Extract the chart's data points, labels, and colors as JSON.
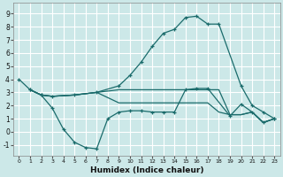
{
  "xlabel": "Humidex (Indice chaleur)",
  "xlim": [
    -0.5,
    23.5
  ],
  "ylim": [
    -1.8,
    9.8
  ],
  "xticks": [
    0,
    1,
    2,
    3,
    4,
    5,
    6,
    7,
    8,
    9,
    10,
    11,
    12,
    13,
    14,
    15,
    16,
    17,
    18,
    19,
    20,
    21,
    22,
    23
  ],
  "yticks": [
    -1,
    0,
    1,
    2,
    3,
    4,
    5,
    6,
    7,
    8,
    9
  ],
  "bg_color": "#cce8e8",
  "grid_color": "#ffffff",
  "line_color": "#1a6b6b",
  "lines": [
    {
      "x": [
        0,
        1,
        2,
        3,
        5,
        7,
        9,
        10,
        11,
        12,
        13,
        14,
        15,
        16,
        17,
        18,
        20,
        21,
        22,
        23
      ],
      "y": [
        4.0,
        3.2,
        2.8,
        2.7,
        2.8,
        3.0,
        3.5,
        4.3,
        5.3,
        6.5,
        7.5,
        7.8,
        8.7,
        8.8,
        8.2,
        8.2,
        3.5,
        2.0,
        1.5,
        1.0
      ],
      "marker": true
    },
    {
      "x": [
        1,
        2,
        3,
        4,
        5,
        6,
        7,
        8,
        9,
        10,
        11,
        12,
        13,
        14,
        15,
        16,
        17,
        19,
        20,
        21,
        22,
        23
      ],
      "y": [
        3.2,
        2.8,
        1.8,
        0.2,
        -0.8,
        -1.2,
        -1.3,
        1.0,
        1.5,
        1.6,
        1.6,
        1.5,
        1.5,
        1.5,
        3.2,
        3.3,
        3.3,
        1.2,
        2.1,
        1.5,
        0.7,
        1.0
      ],
      "marker": true
    },
    {
      "x": [
        1,
        2,
        3,
        5,
        7,
        9,
        10,
        11,
        12,
        13,
        14,
        15,
        16,
        17,
        18,
        19,
        20,
        21,
        22,
        23
      ],
      "y": [
        3.2,
        2.8,
        2.7,
        2.8,
        3.0,
        3.2,
        3.2,
        3.2,
        3.2,
        3.2,
        3.2,
        3.2,
        3.2,
        3.2,
        3.2,
        1.3,
        1.3,
        1.5,
        0.7,
        1.0
      ],
      "marker": false
    },
    {
      "x": [
        1,
        2,
        3,
        5,
        7,
        9,
        10,
        11,
        12,
        13,
        14,
        15,
        16,
        17,
        18,
        19,
        20,
        21,
        22,
        23
      ],
      "y": [
        3.2,
        2.8,
        2.7,
        2.8,
        3.0,
        2.2,
        2.2,
        2.2,
        2.2,
        2.2,
        2.2,
        2.2,
        2.2,
        2.2,
        1.5,
        1.3,
        1.3,
        1.5,
        0.7,
        1.0
      ],
      "marker": false
    }
  ]
}
